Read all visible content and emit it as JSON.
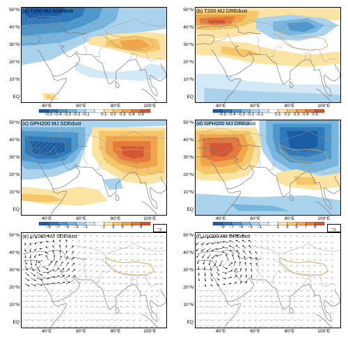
{
  "panels": [
    {
      "label": "(a) T200 MJ SDEdust",
      "kind": "tscale",
      "pattern": "sd_t"
    },
    {
      "label": "(b) T200 MJ DREdust",
      "kind": "tscale",
      "pattern": "dre_t"
    },
    {
      "label": "(c) GPH200 MJ SDEdust",
      "kind": "gscale",
      "pattern": "sd_g"
    },
    {
      "label": "(d) GPH200 MJ DREdust",
      "kind": "gscale",
      "pattern": "dre_g"
    },
    {
      "label": "(e) UV200 MJ SDEdust",
      "kind": "vector",
      "pattern": "sd_uv",
      "ref_vector": "3"
    },
    {
      "label": "(f) UV200 MJ DREdust",
      "kind": "vector",
      "pattern": "dre_uv",
      "ref_vector": "3"
    }
  ],
  "lat_labels": [
    "50°N",
    "40°N",
    "30°N",
    "20°N",
    "10°N",
    "EQ"
  ],
  "lon_labels": [
    "40°E",
    "60°E",
    "80°E",
    "100°E"
  ],
  "colorbar_t": {
    "labels": [
      "−0.5",
      "−0.4",
      "−0.3",
      "−0.2",
      "−0.1",
      "0.1",
      "0.2",
      "0.3",
      "0.4",
      "0.5"
    ],
    "colors": [
      "#1a5fa6",
      "#2f79bb",
      "#4c97cc",
      "#78b5dd",
      "#a9d2ec",
      "#d3e9f6",
      "#ffffff",
      "#fbe3a3",
      "#f5c66a",
      "#f0a54a",
      "#e7793a",
      "#d9532c"
    ]
  },
  "colorbar_g": {
    "labels": [
      "−9",
      "−7",
      "−5",
      "−3",
      "−1",
      "1",
      "3",
      "5",
      "7",
      "9"
    ],
    "colors": [
      "#1a5fa6",
      "#2f79bb",
      "#4c97cc",
      "#78b5dd",
      "#a9d2ec",
      "#d3e9f6",
      "#ffffff",
      "#fbe3a3",
      "#f5c66a",
      "#f0a54a",
      "#e7793a",
      "#d9532c"
    ]
  }
}
